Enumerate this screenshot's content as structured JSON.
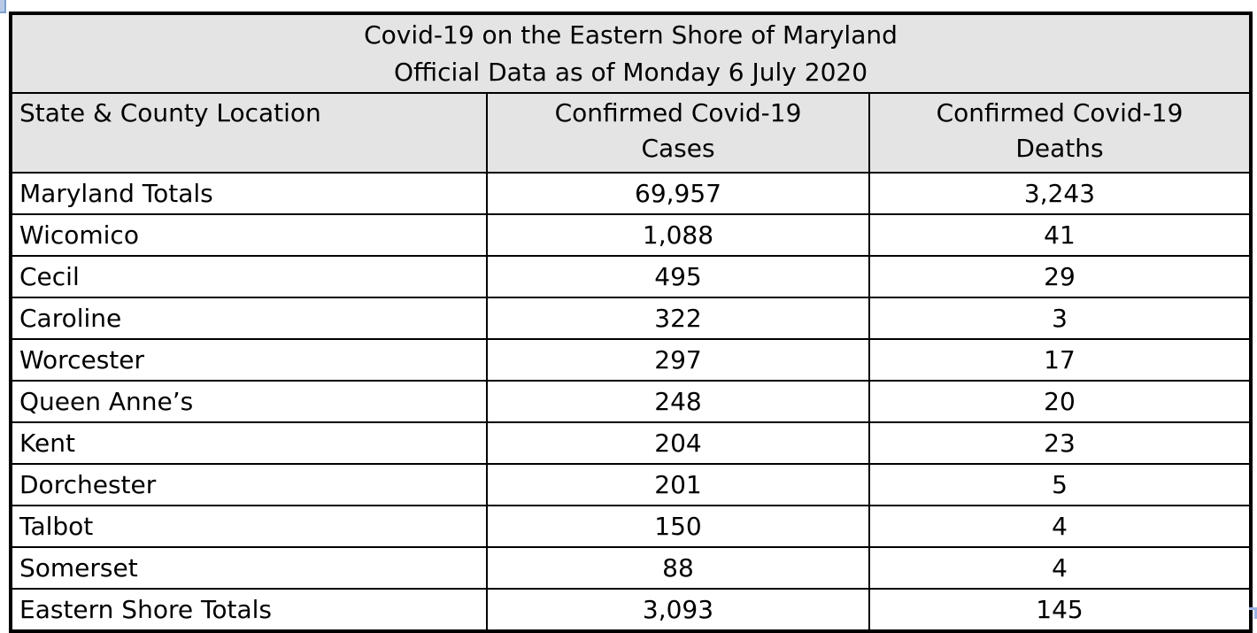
{
  "title": {
    "line1": "Covid-19 on the Eastern Shore of Maryland",
    "line2": "Official Data as of Monday 6 July 2020"
  },
  "headers": {
    "location": "State & County Location",
    "cases_line1": "Confirmed Covid-19",
    "cases_line2": "Cases",
    "deaths_line1": "Confirmed Covid-19",
    "deaths_line2": "Deaths"
  },
  "rows": [
    {
      "location": "Maryland Totals",
      "cases": "69,957",
      "deaths": "3,243"
    },
    {
      "location": "Wicomico",
      "cases": "1,088",
      "deaths": "41"
    },
    {
      "location": "Cecil",
      "cases": "495",
      "deaths": "29"
    },
    {
      "location": "Caroline",
      "cases": "322",
      "deaths": "3"
    },
    {
      "location": "Worcester",
      "cases": "297",
      "deaths": "17"
    },
    {
      "location": "Queen Anne’s",
      "cases": "248",
      "deaths": "20"
    },
    {
      "location": "Kent",
      "cases": "204",
      "deaths": "23"
    },
    {
      "location": "Dorchester",
      "cases": "201",
      "deaths": "5"
    },
    {
      "location": "Talbot",
      "cases": "150",
      "deaths": "4"
    },
    {
      "location": "Somerset",
      "cases": "88",
      "deaths": "4"
    },
    {
      "location": "Eastern Shore Totals",
      "cases": "3,093",
      "deaths": "145"
    }
  ],
  "colors": {
    "header_bg": "#e4e4e4",
    "border": "#000000",
    "handle_blue_fill": "#b7c9e6",
    "handle_blue_edge": "#7da0cc",
    "bracket_blue": "#9bb3e4"
  },
  "chart_data": {
    "type": "table",
    "title": "Covid-19 on the Eastern Shore of Maryland",
    "subtitle": "Official Data as of Monday 6 July 2020",
    "columns": [
      "State & County Location",
      "Confirmed Covid-19 Cases",
      "Confirmed Covid-19 Deaths"
    ],
    "rows": [
      [
        "Maryland Totals",
        69957,
        3243
      ],
      [
        "Wicomico",
        1088,
        41
      ],
      [
        "Cecil",
        495,
        29
      ],
      [
        "Caroline",
        322,
        3
      ],
      [
        "Worcester",
        297,
        17
      ],
      [
        "Queen Anne’s",
        248,
        20
      ],
      [
        "Kent",
        204,
        23
      ],
      [
        "Dorchester",
        201,
        5
      ],
      [
        "Talbot",
        150,
        4
      ],
      [
        "Somerset",
        88,
        4
      ],
      [
        "Eastern Shore Totals",
        3093,
        145
      ]
    ]
  }
}
